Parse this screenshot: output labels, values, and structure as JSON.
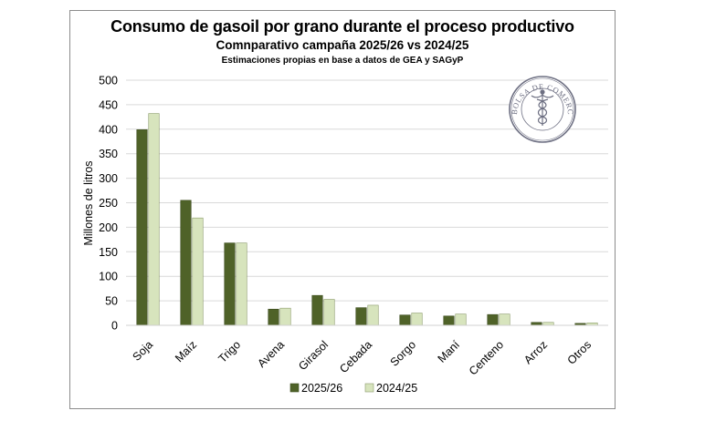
{
  "chart_data": {
    "type": "bar",
    "title": "Consumo de gasoil por grano durante el proceso productivo",
    "subtitle": "Comnparativo campaña 2025/26 vs 2024/25",
    "note": "Estimaciones propias en base a datos de GEA y SAGyP",
    "ylabel": "Millones de litros",
    "xlabel": "",
    "ylim": [
      0,
      500
    ],
    "yticks": [
      0,
      50,
      100,
      150,
      200,
      250,
      300,
      350,
      400,
      450,
      500
    ],
    "categories": [
      "Soja",
      "Maíz",
      "Trigo",
      "Avena",
      "Girasol",
      "Cebada",
      "Sorgo",
      "Maní",
      "Centeno",
      "Arroz",
      "Otros"
    ],
    "series": [
      {
        "name": "2025/26",
        "color": "#4f6228",
        "values": [
          399,
          255,
          168,
          33,
          61,
          36,
          21,
          19,
          22,
          6,
          4
        ]
      },
      {
        "name": "2024/25",
        "color": "#d7e4bd",
        "values": [
          432,
          219,
          168,
          35,
          53,
          41,
          25,
          23,
          23,
          6,
          5
        ]
      }
    ],
    "grid": true,
    "legend": "bottom"
  },
  "seal": {
    "text": "BOLSA DE COMERCIO DE ROSARIO",
    "color": "#6d6f82"
  }
}
